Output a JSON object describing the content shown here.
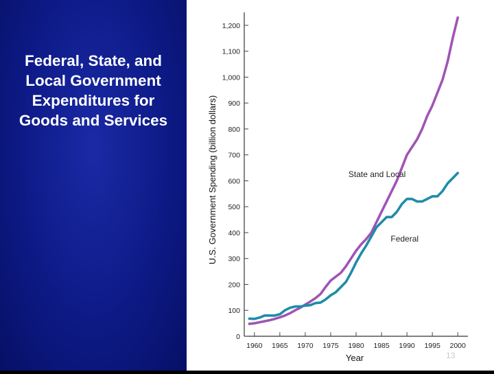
{
  "slide": {
    "title_lines": [
      "Federal, State, and",
      "Local Government",
      "Expenditures for",
      "Goods and Services"
    ],
    "page_number": "13"
  },
  "colors": {
    "background": "#0d1a86",
    "state_local": "#a054b4",
    "federal": "#1e8ca8"
  },
  "chart_data": {
    "type": "line",
    "xlabel": "Year",
    "ylabel": "U.S. Government Spending (billion dollars)",
    "xlim": [
      1958,
      2002
    ],
    "ylim": [
      0,
      1250
    ],
    "xticks": [
      1960,
      1965,
      1970,
      1975,
      1980,
      1985,
      1990,
      1995,
      2000
    ],
    "xtick_labels": [
      "1960",
      "1965",
      "1970",
      "1975",
      "1980",
      "1985",
      "1990",
      "1995",
      "2000"
    ],
    "yticks": [
      0,
      100,
      200,
      300,
      400,
      500,
      600,
      700,
      800,
      900,
      1000,
      1100,
      1200
    ],
    "ytick_labels": [
      "0",
      "100",
      "200",
      "300",
      "400",
      "500",
      "600",
      "700",
      "800",
      "900",
      "1,000",
      "1,100",
      "1,200"
    ],
    "series": [
      {
        "name": "State and Local",
        "x": [
          1959,
          1960,
          1961,
          1962,
          1963,
          1964,
          1965,
          1966,
          1967,
          1968,
          1969,
          1970,
          1971,
          1972,
          1973,
          1974,
          1975,
          1976,
          1977,
          1978,
          1979,
          1980,
          1981,
          1982,
          1983,
          1984,
          1985,
          1986,
          1987,
          1988,
          1989,
          1990,
          1991,
          1992,
          1993,
          1994,
          1995,
          1996,
          1997,
          1998,
          1999,
          2000
        ],
        "y": [
          48,
          50,
          54,
          58,
          62,
          67,
          73,
          80,
          89,
          100,
          110,
          122,
          134,
          147,
          163,
          190,
          215,
          230,
          245,
          270,
          300,
          330,
          355,
          375,
          400,
          440,
          480,
          520,
          560,
          600,
          650,
          700,
          730,
          760,
          800,
          850,
          890,
          940,
          990,
          1060,
          1150,
          1230
        ]
      },
      {
        "name": "Federal",
        "x": [
          1959,
          1960,
          1961,
          1962,
          1963,
          1964,
          1965,
          1966,
          1967,
          1968,
          1969,
          1970,
          1971,
          1972,
          1973,
          1974,
          1975,
          1976,
          1977,
          1978,
          1979,
          1980,
          1981,
          1982,
          1983,
          1984,
          1985,
          1986,
          1987,
          1988,
          1989,
          1990,
          1991,
          1992,
          1993,
          1994,
          1995,
          1996,
          1997,
          1998,
          1999,
          2000
        ],
        "y": [
          68,
          67,
          72,
          80,
          80,
          80,
          85,
          100,
          110,
          115,
          115,
          118,
          120,
          128,
          130,
          142,
          158,
          170,
          190,
          210,
          245,
          285,
          320,
          350,
          385,
          420,
          440,
          460,
          460,
          480,
          510,
          530,
          530,
          520,
          520,
          530,
          540,
          540,
          560,
          590,
          610,
          630
        ]
      }
    ],
    "annotations": [
      {
        "text": "State and Local",
        "x": 1978.5,
        "y": 615
      },
      {
        "text": "Federal",
        "x": 1986.8,
        "y": 365
      }
    ],
    "grid": false,
    "legend": "none"
  }
}
